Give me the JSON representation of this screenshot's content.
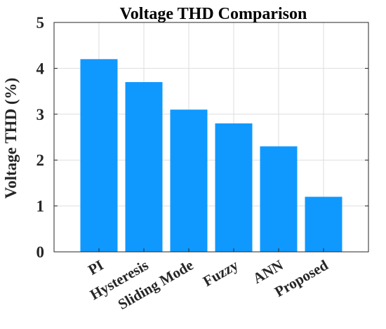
{
  "chart_data": {
    "type": "bar",
    "title": "Voltage THD Comparison",
    "xlabel": "",
    "ylabel": "Voltage THD (%)",
    "categories": [
      "PI",
      "Hysteresis",
      "Sliding Mode",
      "Fuzzy",
      "ANN",
      "Proposed"
    ],
    "values": [
      4.2,
      3.7,
      3.1,
      2.8,
      2.3,
      1.2
    ],
    "ylim": [
      0,
      5
    ],
    "yticks": [
      0,
      1,
      2,
      3,
      4,
      5
    ],
    "grid": true,
    "bar_color": "#0f99ff",
    "tick_label_rotation_deg": -30
  }
}
